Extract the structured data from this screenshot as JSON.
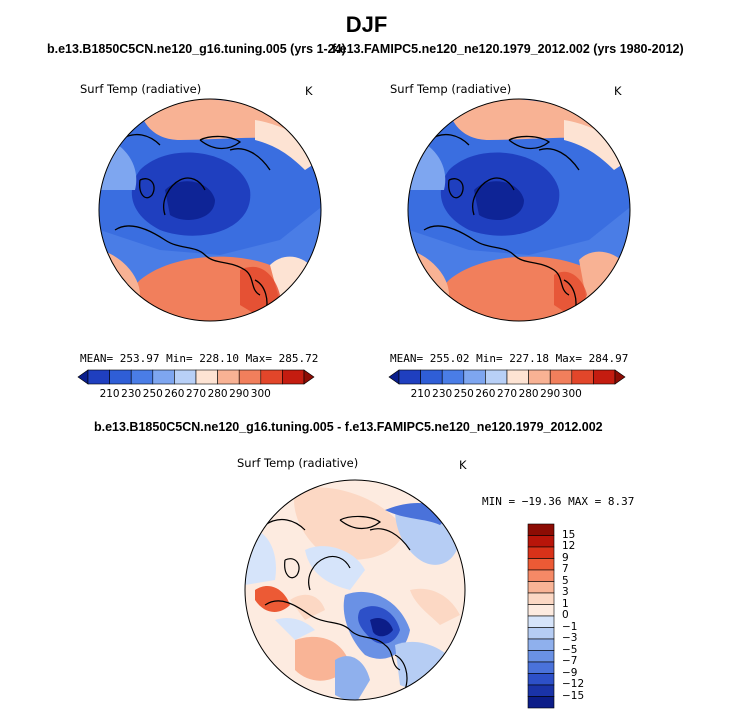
{
  "main_title": "DJF",
  "panels": [
    {
      "title": "b.e13.B1850C5CN.ne120_g16.tuning.005 (yrs 1-24)",
      "variable": "Surf Temp (radiative)",
      "units": "K",
      "stats": "MEAN= 253.97  Min= 228.10  Max= 285.72",
      "colorbar_labels": [
        "210",
        "230",
        "250",
        "260",
        "270",
        "280",
        "290",
        "300"
      ]
    },
    {
      "title": "f.e13.FAMIPC5.ne120_ne120.1979_2012.002 (yrs 1980-2012)",
      "variable": "Surf Temp (radiative)",
      "units": "K",
      "stats": "MEAN= 255.02  Min= 227.18  Max= 284.97",
      "colorbar_labels": [
        "210",
        "230",
        "250",
        "260",
        "270",
        "280",
        "290",
        "300"
      ]
    }
  ],
  "diff_panel": {
    "title": "b.e13.B1850C5CN.ne120_g16.tuning.005 - f.e13.FAMIPC5.ne120_ne120.1979_2012.002",
    "variable": "Surf Temp (radiative)",
    "units": "K",
    "stats": "MIN = −19.36 MAX =   8.37",
    "colorbar_labels": [
      "15",
      "12",
      "9",
      "7",
      "5",
      "3",
      "1",
      "0",
      "−1",
      "−3",
      "−5",
      "−7",
      "−9",
      "−12",
      "−15"
    ]
  },
  "colors": {
    "abs_scale": [
      "#0a1e8c",
      "#1f3fbf",
      "#2f5ed6",
      "#4a7de6",
      "#7ea6f0",
      "#b8d0f7",
      "#fde3d3",
      "#f8b294",
      "#f17f5c",
      "#e2462a",
      "#c41c10",
      "#8c0c04"
    ],
    "diff_scale": [
      "#8c0c04",
      "#b8150a",
      "#d93219",
      "#ec5a35",
      "#f58966",
      "#f9b496",
      "#fcd8c4",
      "#fdebe0",
      "#d6e4fa",
      "#b6cdf4",
      "#8fb0ed",
      "#6a91e5",
      "#4a72da",
      "#2d50c8",
      "#1a33a8",
      "#0c1d88"
    ]
  }
}
